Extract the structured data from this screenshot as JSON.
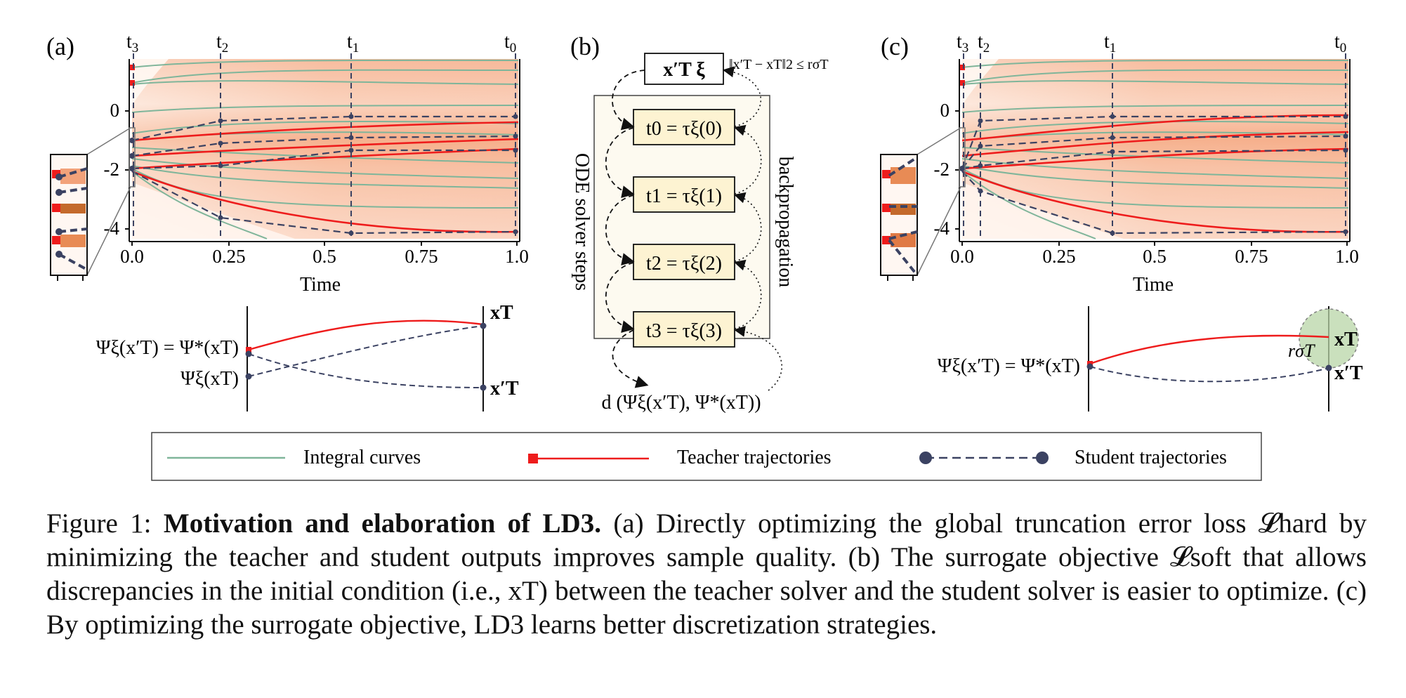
{
  "panel_a": {
    "label": "(a)",
    "time_labels": [
      "t",
      "t",
      "t",
      "t"
    ],
    "time_subs": [
      "3",
      "2",
      "1",
      "0"
    ],
    "time_values": [
      0.0,
      0.23,
      0.57,
      0.99
    ],
    "y_ticks": [
      "0",
      "-2",
      "-4"
    ],
    "x_ticks": [
      "0.0",
      "0.25",
      "0.5",
      "0.75",
      "1.0"
    ],
    "xlabel": "Time",
    "bottom_left_top": "Ψξ(x′T) = Ψ*(xT)",
    "bottom_left_bottom": "Ψξ(xT)",
    "bottom_right_top": "xT",
    "bottom_right_bottom": "x′T"
  },
  "panel_b": {
    "label": "(b)",
    "top_box": "x′T  ξ",
    "constraint": "‖x′T − xT‖2 ≤ rσT",
    "steps": [
      "t0 = τξ(0)",
      "t1 = τξ(1)",
      "t2 = τξ(2)",
      "t3 = τξ(3)"
    ],
    "left_label": "ODE solver steps",
    "right_label": "backpropagation",
    "bottom_label": "d (Ψξ(x′T), Ψ*(xT))"
  },
  "panel_c": {
    "label": "(c)",
    "time_labels": [
      "t",
      "t",
      "t",
      "t"
    ],
    "time_subs": [
      "3",
      "2",
      "1",
      "0"
    ],
    "time_values": [
      0.0,
      0.04,
      0.38,
      0.99
    ],
    "y_ticks": [
      "0",
      "-2",
      "-4"
    ],
    "x_ticks": [
      "0.0",
      "0.25",
      "0.5",
      "0.75",
      "1.0"
    ],
    "xlabel": "Time",
    "bottom_left": "Ψξ(x′T) = Ψ*(xT)",
    "bottom_right_top": "xT",
    "bottom_right_bottom": "x′T",
    "radius_label": "rσT"
  },
  "legend": {
    "items": [
      "Integral curves",
      "Teacher trajectories",
      "Student trajectories"
    ]
  },
  "colors": {
    "integral": "#7fb59a",
    "teacher": "#ee1c1c",
    "student": "#3b4262",
    "heat": "#f4a582",
    "box_fill": "#fdf3d2",
    "circle_fill": "#b9d6a8"
  },
  "caption": {
    "prefix": "Figure 1: ",
    "bold": "Motivation and elaboration of LD3.",
    "body": " (a) Directly optimizing the global truncation error loss 𝓛hard by minimizing the teacher and student outputs improves sample quality. (b) The surrogate objective 𝓛soft that allows discrepancies in the initial condition (i.e., xT) between the teacher solver and the student solver is easier to optimize. (c) By optimizing the surrogate objective, LD3 learns better discretization strategies."
  }
}
